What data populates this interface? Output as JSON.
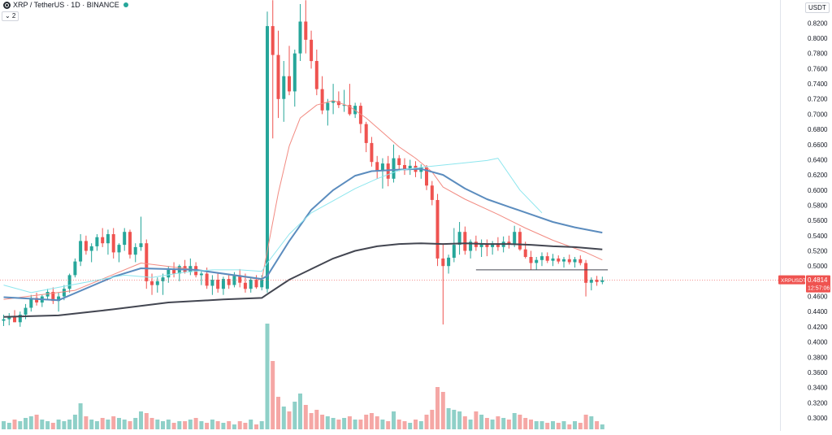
{
  "header": {
    "symbol_title": "XRP / TetherUS · 1D · BINANCE",
    "indicator_toggle": "⌄ 2",
    "currency": "USDT"
  },
  "price_tag": {
    "label": "XRPUSDT",
    "value": "0.4814",
    "countdown": "12:57:06",
    "color": "#ef5350"
  },
  "colors": {
    "up": "#26a69a",
    "down": "#ef5350",
    "volume_up": "#8fd0c8",
    "volume_down": "#f5a7a5",
    "ema_fast": "#f28b82",
    "ema_mid": "#5b8cbe",
    "ema_slow": "#434651",
    "vwap": "#8de6ee"
  },
  "chart_data": {
    "type": "candlestick",
    "title": "XRP / TetherUS · 1D · BINANCE",
    "ylim": [
      0.3,
      0.83
    ],
    "y_ticks": [
      "0.8200",
      "0.8000",
      "0.7800",
      "0.7600",
      "0.7400",
      "0.7200",
      "0.7000",
      "0.6800",
      "0.6600",
      "0.6400",
      "0.6200",
      "0.6000",
      "0.5800",
      "0.5600",
      "0.5400",
      "0.5200",
      "0.5000",
      "0.4800",
      "0.4600",
      "0.4400",
      "0.4200",
      "0.4000",
      "0.3800",
      "0.3600",
      "0.3400",
      "0.3200",
      "0.3000"
    ],
    "ohlc": [
      [
        0.428,
        0.436,
        0.421,
        0.43
      ],
      [
        0.43,
        0.438,
        0.422,
        0.433
      ],
      [
        0.433,
        0.442,
        0.426,
        0.426
      ],
      [
        0.426,
        0.44,
        0.42,
        0.436
      ],
      [
        0.436,
        0.45,
        0.43,
        0.445
      ],
      [
        0.445,
        0.462,
        0.44,
        0.458
      ],
      [
        0.458,
        0.465,
        0.448,
        0.452
      ],
      [
        0.452,
        0.462,
        0.446,
        0.46
      ],
      [
        0.46,
        0.47,
        0.455,
        0.466
      ],
      [
        0.466,
        0.472,
        0.45,
        0.454
      ],
      [
        0.454,
        0.465,
        0.44,
        0.46
      ],
      [
        0.46,
        0.475,
        0.455,
        0.47
      ],
      [
        0.47,
        0.49,
        0.465,
        0.488
      ],
      [
        0.488,
        0.51,
        0.485,
        0.506
      ],
      [
        0.506,
        0.542,
        0.5,
        0.533
      ],
      [
        0.533,
        0.54,
        0.515,
        0.52
      ],
      [
        0.52,
        0.53,
        0.505,
        0.526
      ],
      [
        0.526,
        0.542,
        0.52,
        0.538
      ],
      [
        0.538,
        0.55,
        0.525,
        0.53
      ],
      [
        0.53,
        0.548,
        0.515,
        0.542
      ],
      [
        0.542,
        0.55,
        0.51,
        0.518
      ],
      [
        0.518,
        0.53,
        0.505,
        0.528
      ],
      [
        0.528,
        0.55,
        0.52,
        0.545
      ],
      [
        0.545,
        0.548,
        0.51,
        0.515
      ],
      [
        0.515,
        0.53,
        0.505,
        0.525
      ],
      [
        0.525,
        0.565,
        0.52,
        0.53
      ],
      [
        0.53,
        0.535,
        0.47,
        0.48
      ],
      [
        0.48,
        0.49,
        0.462,
        0.475
      ],
      [
        0.475,
        0.485,
        0.465,
        0.48
      ],
      [
        0.48,
        0.49,
        0.462,
        0.485
      ],
      [
        0.485,
        0.5,
        0.478,
        0.495
      ],
      [
        0.495,
        0.505,
        0.485,
        0.49
      ],
      [
        0.49,
        0.502,
        0.48,
        0.5
      ],
      [
        0.5,
        0.508,
        0.49,
        0.492
      ],
      [
        0.492,
        0.51,
        0.488,
        0.5
      ],
      [
        0.5,
        0.505,
        0.485,
        0.488
      ],
      [
        0.488,
        0.495,
        0.475,
        0.49
      ],
      [
        0.49,
        0.498,
        0.47,
        0.474
      ],
      [
        0.474,
        0.488,
        0.462,
        0.482
      ],
      [
        0.482,
        0.49,
        0.465,
        0.47
      ],
      [
        0.47,
        0.486,
        0.462,
        0.483
      ],
      [
        0.483,
        0.49,
        0.47,
        0.475
      ],
      [
        0.475,
        0.492,
        0.472,
        0.488
      ],
      [
        0.488,
        0.496,
        0.472,
        0.478
      ],
      [
        0.478,
        0.49,
        0.465,
        0.47
      ],
      [
        0.47,
        0.485,
        0.465,
        0.482
      ],
      [
        0.482,
        0.488,
        0.47,
        0.472
      ],
      [
        0.472,
        0.488,
        0.468,
        0.482
      ],
      [
        0.47,
        0.835,
        0.465,
        0.816
      ],
      [
        0.816,
        0.85,
        0.668,
        0.778
      ],
      [
        0.778,
        0.81,
        0.695,
        0.72
      ],
      [
        0.72,
        0.77,
        0.69,
        0.75
      ],
      [
        0.75,
        0.79,
        0.725,
        0.73
      ],
      [
        0.73,
        0.785,
        0.71,
        0.78
      ],
      [
        0.78,
        0.845,
        0.77,
        0.822
      ],
      [
        0.822,
        0.85,
        0.78,
        0.798
      ],
      [
        0.798,
        0.81,
        0.76,
        0.77
      ],
      [
        0.77,
        0.785,
        0.725,
        0.733
      ],
      [
        0.733,
        0.75,
        0.7,
        0.705
      ],
      [
        0.705,
        0.72,
        0.685,
        0.715
      ],
      [
        0.715,
        0.74,
        0.7,
        0.717
      ],
      [
        0.717,
        0.73,
        0.708,
        0.712
      ],
      [
        0.712,
        0.732,
        0.703,
        0.712
      ],
      [
        0.712,
        0.74,
        0.698,
        0.7
      ],
      [
        0.7,
        0.715,
        0.695,
        0.711
      ],
      [
        0.711,
        0.715,
        0.675,
        0.687
      ],
      [
        0.687,
        0.69,
        0.65,
        0.662
      ],
      [
        0.662,
        0.67,
        0.631,
        0.637
      ],
      [
        0.637,
        0.645,
        0.615,
        0.625
      ],
      [
        0.625,
        0.642,
        0.602,
        0.635
      ],
      [
        0.635,
        0.645,
        0.605,
        0.615
      ],
      [
        0.615,
        0.66,
        0.61,
        0.642
      ],
      [
        0.642,
        0.646,
        0.625,
        0.633
      ],
      [
        0.633,
        0.642,
        0.62,
        0.628
      ],
      [
        0.628,
        0.64,
        0.62,
        0.632
      ],
      [
        0.632,
        0.638,
        0.617,
        0.624
      ],
      [
        0.624,
        0.634,
        0.615,
        0.63
      ],
      [
        0.63,
        0.633,
        0.6,
        0.606
      ],
      [
        0.606,
        0.612,
        0.58,
        0.587
      ],
      [
        0.587,
        0.595,
        0.5,
        0.51
      ],
      [
        0.51,
        0.53,
        0.423,
        0.5
      ],
      [
        0.5,
        0.515,
        0.49,
        0.511
      ],
      [
        0.511,
        0.55,
        0.505,
        0.528
      ],
      [
        0.528,
        0.558,
        0.515,
        0.545
      ],
      [
        0.545,
        0.552,
        0.515,
        0.52
      ],
      [
        0.52,
        0.535,
        0.51,
        0.532
      ],
      [
        0.532,
        0.54,
        0.52,
        0.525
      ],
      [
        0.525,
        0.535,
        0.512,
        0.53
      ],
      [
        0.53,
        0.535,
        0.513,
        0.525
      ],
      [
        0.525,
        0.533,
        0.515,
        0.53
      ],
      [
        0.53,
        0.538,
        0.52,
        0.525
      ],
      [
        0.525,
        0.539,
        0.518,
        0.532
      ],
      [
        0.532,
        0.54,
        0.523,
        0.528
      ],
      [
        0.528,
        0.553,
        0.525,
        0.545
      ],
      [
        0.545,
        0.55,
        0.52,
        0.522
      ],
      [
        0.522,
        0.532,
        0.51,
        0.512
      ],
      [
        0.512,
        0.52,
        0.495,
        0.504
      ],
      [
        0.504,
        0.512,
        0.495,
        0.508
      ],
      [
        0.508,
        0.518,
        0.5,
        0.513
      ],
      [
        0.513,
        0.518,
        0.504,
        0.507
      ],
      [
        0.507,
        0.516,
        0.5,
        0.51
      ],
      [
        0.51,
        0.514,
        0.503,
        0.506
      ],
      [
        0.506,
        0.512,
        0.498,
        0.509
      ],
      [
        0.509,
        0.515,
        0.502,
        0.505
      ],
      [
        0.505,
        0.512,
        0.498,
        0.509
      ],
      [
        0.509,
        0.514,
        0.501,
        0.504
      ],
      [
        0.504,
        0.508,
        0.46,
        0.478
      ],
      [
        0.478,
        0.485,
        0.468,
        0.482
      ],
      [
        0.482,
        0.487,
        0.474,
        0.479
      ],
      [
        0.479,
        0.486,
        0.476,
        0.4814
      ]
    ],
    "volume_max": 0.2,
    "volume": [
      0.05,
      0.04,
      0.06,
      0.05,
      0.07,
      0.08,
      0.09,
      0.06,
      0.05,
      0.04,
      0.06,
      0.05,
      0.06,
      0.09,
      0.16,
      0.08,
      0.06,
      0.05,
      0.07,
      0.06,
      0.08,
      0.07,
      0.06,
      0.05,
      0.07,
      0.11,
      0.1,
      0.07,
      0.06,
      0.05,
      0.06,
      0.04,
      0.05,
      0.05,
      0.06,
      0.07,
      0.05,
      0.04,
      0.06,
      0.05,
      0.04,
      0.05,
      0.03,
      0.05,
      0.04,
      0.06,
      0.03,
      0.05,
      0.75,
      0.42,
      0.2,
      0.14,
      0.11,
      0.17,
      0.22,
      0.15,
      0.1,
      0.12,
      0.09,
      0.08,
      0.07,
      0.06,
      0.07,
      0.08,
      0.06,
      0.06,
      0.09,
      0.1,
      0.08,
      0.06,
      0.05,
      0.11,
      0.06,
      0.05,
      0.04,
      0.06,
      0.05,
      0.09,
      0.12,
      0.26,
      0.23,
      0.13,
      0.12,
      0.11,
      0.08,
      0.06,
      0.11,
      0.09,
      0.07,
      0.06,
      0.08,
      0.07,
      0.06,
      0.1,
      0.09,
      0.07,
      0.06,
      0.05,
      0.05,
      0.04,
      0.05,
      0.04,
      0.05,
      0.03,
      0.05,
      0.04,
      0.09,
      0.08,
      0.05,
      0.03
    ],
    "ma_lines": {
      "ema_fast": [
        [
          0,
          0.456
        ],
        [
          13,
          0.468
        ],
        [
          25,
          0.504
        ],
        [
          35,
          0.495
        ],
        [
          47,
          0.482
        ],
        [
          48,
          0.52
        ],
        [
          50,
          0.596
        ],
        [
          52,
          0.658
        ],
        [
          54,
          0.695
        ],
        [
          57,
          0.712
        ],
        [
          60,
          0.718
        ],
        [
          63,
          0.71
        ],
        [
          66,
          0.695
        ],
        [
          69,
          0.676
        ],
        [
          72,
          0.657
        ],
        [
          75,
          0.642
        ],
        [
          78,
          0.624
        ],
        [
          80,
          0.604
        ],
        [
          84,
          0.588
        ],
        [
          90,
          0.568
        ],
        [
          95,
          0.55
        ],
        [
          100,
          0.534
        ],
        [
          106,
          0.518
        ],
        [
          109,
          0.508
        ]
      ],
      "ema_mid": [
        [
          0,
          0.459
        ],
        [
          10,
          0.455
        ],
        [
          20,
          0.486
        ],
        [
          25,
          0.497
        ],
        [
          35,
          0.495
        ],
        [
          47,
          0.483
        ],
        [
          48,
          0.487
        ],
        [
          52,
          0.533
        ],
        [
          56,
          0.574
        ],
        [
          60,
          0.6
        ],
        [
          64,
          0.619
        ],
        [
          67,
          0.625
        ],
        [
          72,
          0.627
        ],
        [
          76,
          0.628
        ],
        [
          80,
          0.62
        ],
        [
          84,
          0.602
        ],
        [
          88,
          0.588
        ],
        [
          92,
          0.578
        ],
        [
          96,
          0.568
        ],
        [
          100,
          0.558
        ],
        [
          104,
          0.551
        ],
        [
          109,
          0.544
        ]
      ],
      "ema_slow": [
        [
          0,
          0.433
        ],
        [
          10,
          0.435
        ],
        [
          20,
          0.443
        ],
        [
          30,
          0.452
        ],
        [
          40,
          0.456
        ],
        [
          47,
          0.458
        ],
        [
          48,
          0.463
        ],
        [
          52,
          0.482
        ],
        [
          56,
          0.496
        ],
        [
          60,
          0.51
        ],
        [
          64,
          0.52
        ],
        [
          68,
          0.526
        ],
        [
          72,
          0.529
        ],
        [
          76,
          0.53
        ],
        [
          80,
          0.529
        ],
        [
          84,
          0.53
        ],
        [
          88,
          0.529
        ],
        [
          92,
          0.529
        ],
        [
          96,
          0.528
        ],
        [
          100,
          0.526
        ],
        [
          104,
          0.525
        ],
        [
          109,
          0.522
        ]
      ],
      "vwap": [
        [
          0,
          0.475
        ],
        [
          5,
          0.465
        ],
        [
          10,
          0.472
        ],
        [
          16,
          0.48
        ],
        [
          22,
          0.488
        ],
        [
          27,
          0.485
        ],
        [
          33,
          0.492
        ],
        [
          38,
          0.495
        ],
        [
          43,
          0.495
        ],
        [
          47,
          0.493
        ],
        [
          48,
          0.504
        ],
        [
          52,
          0.542
        ],
        [
          56,
          0.57
        ],
        [
          60,
          0.586
        ],
        [
          64,
          0.602
        ],
        [
          68,
          0.615
        ],
        [
          72,
          0.626
        ],
        [
          76,
          0.63
        ],
        [
          80,
          0.633
        ],
        [
          84,
          0.636
        ],
        [
          88,
          0.639
        ],
        [
          90,
          0.642
        ],
        [
          94,
          0.6
        ],
        [
          98,
          0.57
        ]
      ]
    },
    "hline": [
      [
        86,
        0.495
      ],
      [
        110,
        0.495
      ]
    ],
    "grid": false,
    "legend": "none"
  }
}
